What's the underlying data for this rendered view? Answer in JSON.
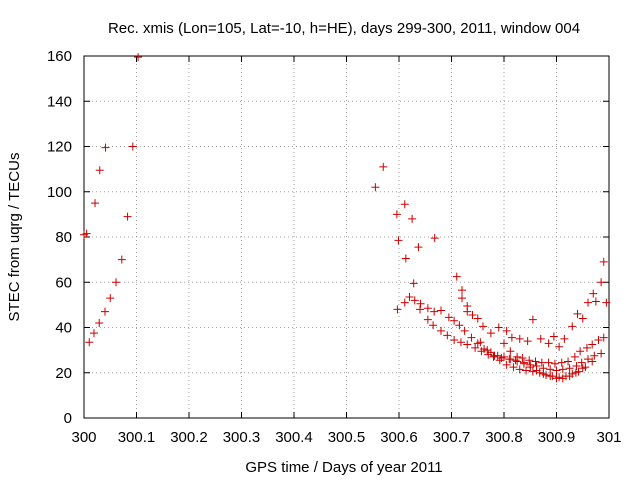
{
  "chart_data": {
    "type": "scatter",
    "title": "Rec. xmis (Lon=105, Lat=-10, h=HE), days 299-300, 2011, window 004",
    "xlabel": "GPS time / Days of year 2011",
    "ylabel": "STEC from uqrg / TECUs",
    "xlim": [
      300,
      301
    ],
    "ylim": [
      0,
      160
    ],
    "x_ticks": [
      300,
      300.1,
      300.2,
      300.3,
      300.4,
      300.5,
      300.6,
      300.7,
      300.8,
      300.9,
      301
    ],
    "x_tick_labels": [
      "300",
      "300.1",
      "300.2",
      "300.3",
      "300.4",
      "300.5",
      "300.6",
      "300.7",
      "300.8",
      "300.9",
      "301"
    ],
    "y_ticks": [
      0,
      20,
      40,
      60,
      80,
      100,
      120,
      140,
      160
    ],
    "y_tick_labels": [
      "0",
      "20",
      "40",
      "60",
      "80",
      "100",
      "120",
      "140",
      "160"
    ],
    "grid": true,
    "marker": "+",
    "marker_color": "#cc0000",
    "series": [
      {
        "name": "STEC",
        "points": [
          [
            300.0,
            81
          ],
          [
            300.005,
            81.5
          ],
          [
            300.01,
            33.5
          ],
          [
            300.019,
            37.5
          ],
          [
            300.021,
            95
          ],
          [
            300.029,
            42
          ],
          [
            300.03,
            109.5
          ],
          [
            300.04,
            47
          ],
          [
            300.041,
            119.5
          ],
          [
            300.05,
            53
          ],
          [
            300.061,
            60
          ],
          [
            300.072,
            70
          ],
          [
            300.083,
            89
          ],
          [
            300.093,
            120
          ],
          [
            300.103,
            159.5
          ],
          [
            300.555,
            102
          ],
          [
            300.57,
            111
          ],
          [
            300.596,
            90
          ],
          [
            300.599,
            78.5
          ],
          [
            300.611,
            94.5
          ],
          [
            300.613,
            70.5
          ],
          [
            300.625,
            88
          ],
          [
            300.628,
            59.5
          ],
          [
            300.637,
            75.5
          ],
          [
            300.668,
            79.5
          ],
          [
            300.71,
            62.5
          ],
          [
            300.72,
            56.5
          ],
          [
            300.73,
            49.5
          ],
          [
            300.597,
            48
          ],
          [
            300.611,
            51
          ],
          [
            300.62,
            53.5
          ],
          [
            300.63,
            52
          ],
          [
            300.641,
            50.5
          ],
          [
            300.655,
            48.5
          ],
          [
            300.667,
            47
          ],
          [
            300.68,
            47.5
          ],
          [
            300.695,
            44.5
          ],
          [
            300.705,
            43
          ],
          [
            300.72,
            53
          ],
          [
            300.73,
            47
          ],
          [
            300.74,
            45.5
          ],
          [
            300.75,
            44
          ],
          [
            300.76,
            40.5
          ],
          [
            300.775,
            37.5
          ],
          [
            300.79,
            40
          ],
          [
            300.805,
            38.5
          ],
          [
            300.815,
            35.5
          ],
          [
            300.83,
            35
          ],
          [
            300.845,
            34
          ],
          [
            300.855,
            43.5
          ],
          [
            300.87,
            35
          ],
          [
            300.885,
            33
          ],
          [
            300.895,
            36
          ],
          [
            300.905,
            31.5
          ],
          [
            300.915,
            35
          ],
          [
            300.93,
            40.5
          ],
          [
            300.94,
            46
          ],
          [
            300.95,
            44
          ],
          [
            300.96,
            51
          ],
          [
            300.97,
            55
          ],
          [
            300.975,
            51.5
          ],
          [
            300.985,
            60
          ],
          [
            300.99,
            69
          ],
          [
            300.995,
            51
          ],
          [
            300.64,
            48
          ],
          [
            300.655,
            43.5
          ],
          [
            300.665,
            41
          ],
          [
            300.68,
            38.5
          ],
          [
            300.692,
            36.5
          ],
          [
            300.705,
            34.5
          ],
          [
            300.718,
            33.5
          ],
          [
            300.73,
            32.5
          ],
          [
            300.745,
            31
          ],
          [
            300.757,
            29.5
          ],
          [
            300.77,
            28
          ],
          [
            300.782,
            27.5
          ],
          [
            300.795,
            26.5
          ],
          [
            300.81,
            26
          ],
          [
            300.822,
            25.5
          ],
          [
            300.835,
            26.5
          ],
          [
            300.848,
            25.5
          ],
          [
            300.86,
            25
          ],
          [
            300.872,
            24.5
          ],
          [
            300.885,
            24.5
          ],
          [
            300.897,
            24
          ],
          [
            300.91,
            24.5
          ],
          [
            300.922,
            25
          ],
          [
            300.935,
            27
          ],
          [
            300.945,
            29.5
          ],
          [
            300.958,
            31
          ],
          [
            300.968,
            32.5
          ],
          [
            300.98,
            34.5
          ],
          [
            300.99,
            35.5
          ],
          [
            300.715,
            41
          ],
          [
            300.725,
            38.5
          ],
          [
            300.738,
            35.5
          ],
          [
            300.75,
            33
          ],
          [
            300.762,
            30.5
          ],
          [
            300.775,
            29
          ],
          [
            300.788,
            27.5
          ],
          [
            300.8,
            27
          ],
          [
            300.812,
            26
          ],
          [
            300.825,
            25
          ],
          [
            300.838,
            24
          ],
          [
            300.85,
            23.5
          ],
          [
            300.862,
            23
          ],
          [
            300.875,
            22
          ],
          [
            300.888,
            21.5
          ],
          [
            300.9,
            21
          ],
          [
            300.912,
            21.5
          ],
          [
            300.925,
            22
          ],
          [
            300.938,
            23
          ],
          [
            300.948,
            24.5
          ],
          [
            300.96,
            26
          ],
          [
            300.972,
            27.5
          ],
          [
            300.985,
            28.5
          ],
          [
            300.755,
            33.5
          ],
          [
            300.768,
            30
          ],
          [
            300.78,
            27
          ],
          [
            300.792,
            25.5
          ],
          [
            300.805,
            23.5
          ],
          [
            300.818,
            22.5
          ],
          [
            300.83,
            21.5
          ],
          [
            300.842,
            21
          ],
          [
            300.855,
            20.5
          ],
          [
            300.868,
            20
          ],
          [
            300.88,
            19
          ],
          [
            300.892,
            18.5
          ],
          [
            300.905,
            18
          ],
          [
            300.918,
            18.5
          ],
          [
            300.93,
            19.5
          ],
          [
            300.942,
            20.5
          ],
          [
            300.955,
            22.5
          ],
          [
            300.968,
            25
          ],
          [
            300.8,
            33
          ],
          [
            300.812,
            29.5
          ],
          [
            300.825,
            27
          ],
          [
            300.838,
            24.5
          ],
          [
            300.85,
            22.5
          ],
          [
            300.862,
            21
          ],
          [
            300.875,
            19.5
          ],
          [
            300.888,
            18.5
          ],
          [
            300.9,
            17.5
          ],
          [
            300.912,
            17.5
          ],
          [
            300.925,
            18.5
          ],
          [
            300.937,
            20
          ],
          [
            300.95,
            22
          ]
        ]
      }
    ]
  }
}
